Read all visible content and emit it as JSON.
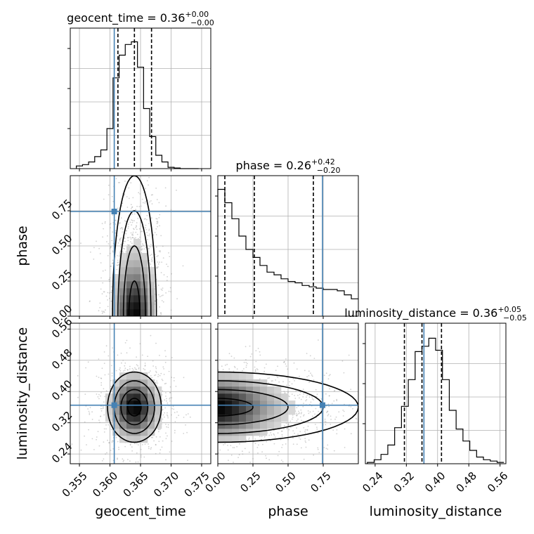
{
  "chart_data": {
    "type": "corner",
    "parameters": [
      "geocent_time",
      "phase",
      "luminosity_distance"
    ],
    "titles": {
      "geocent_time": {
        "label": "geocent_time",
        "value": "0.36",
        "plus": "+0.00",
        "minus": "−0.00"
      },
      "phase": {
        "label": "phase",
        "value": "0.26",
        "plus": "+0.42",
        "minus": "−0.20"
      },
      "luminosity_distance": {
        "label": "luminosity_distance",
        "value": "0.36",
        "plus": "+0.05",
        "minus": "−0.05"
      }
    },
    "ranges": {
      "geocent_time": [
        0.3535,
        0.3765
      ],
      "phase": [
        0.0,
        1.0
      ],
      "luminosity_distance": [
        0.215,
        0.575
      ]
    },
    "ticks": {
      "geocent_time": [
        "0.355",
        "0.360",
        "0.365",
        "0.370",
        "0.375"
      ],
      "phase": [
        "0.00",
        "0.25",
        "0.50",
        "0.75"
      ],
      "luminosity_distance": [
        "0.24",
        "0.32",
        "0.40",
        "0.48",
        "0.56"
      ]
    },
    "truths": {
      "geocent_time": 0.3607,
      "phase": 0.745,
      "luminosity_distance": 0.365
    },
    "quantiles": {
      "geocent_time": [
        0.3613,
        0.364,
        0.3668
      ],
      "phase": [
        0.05,
        0.26,
        0.68
      ],
      "luminosity_distance": [
        0.315,
        0.36,
        0.41
      ]
    },
    "histograms": {
      "geocent_time": [
        0.02,
        0.03,
        0.05,
        0.09,
        0.14,
        0.3,
        0.68,
        0.85,
        0.93,
        0.95,
        0.76,
        0.45,
        0.24,
        0.1,
        0.05,
        0.01,
        0.005,
        0.0,
        0.0,
        0.0
      ],
      "phase": [
        0.95,
        0.85,
        0.73,
        0.6,
        0.5,
        0.44,
        0.38,
        0.33,
        0.31,
        0.28,
        0.26,
        0.25,
        0.23,
        0.22,
        0.21,
        0.2,
        0.2,
        0.19,
        0.16,
        0.13
      ],
      "luminosity_distance": [
        0.01,
        0.03,
        0.07,
        0.14,
        0.27,
        0.43,
        0.63,
        0.84,
        0.88,
        0.94,
        0.85,
        0.63,
        0.4,
        0.26,
        0.17,
        0.1,
        0.05,
        0.03,
        0.02,
        0.01
      ]
    },
    "grid": true
  }
}
